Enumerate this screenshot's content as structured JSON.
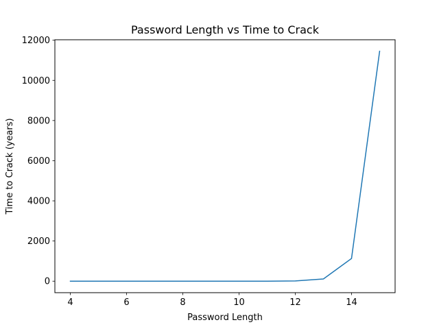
{
  "chart_data": {
    "type": "line",
    "title": "Password Length vs Time to Crack",
    "xlabel": "Password Length",
    "ylabel": "Time to Crack (years)",
    "x": [
      4,
      5,
      6,
      7,
      8,
      9,
      10,
      11,
      12,
      13,
      14,
      15
    ],
    "series": [
      {
        "name": "Time to Crack",
        "color": "#1f77b4",
        "values": [
          0,
          0,
          0,
          0,
          0,
          0,
          0,
          1,
          10,
          110,
          1130,
          11450
        ]
      }
    ],
    "xlim": [
      3.45,
      15.55
    ],
    "ylim": [
      -572.5,
      12022.5
    ],
    "xticks": [
      4,
      6,
      8,
      10,
      12,
      14
    ],
    "yticks": [
      0,
      2000,
      4000,
      6000,
      8000,
      10000,
      12000
    ],
    "grid": false,
    "legend": "none"
  }
}
